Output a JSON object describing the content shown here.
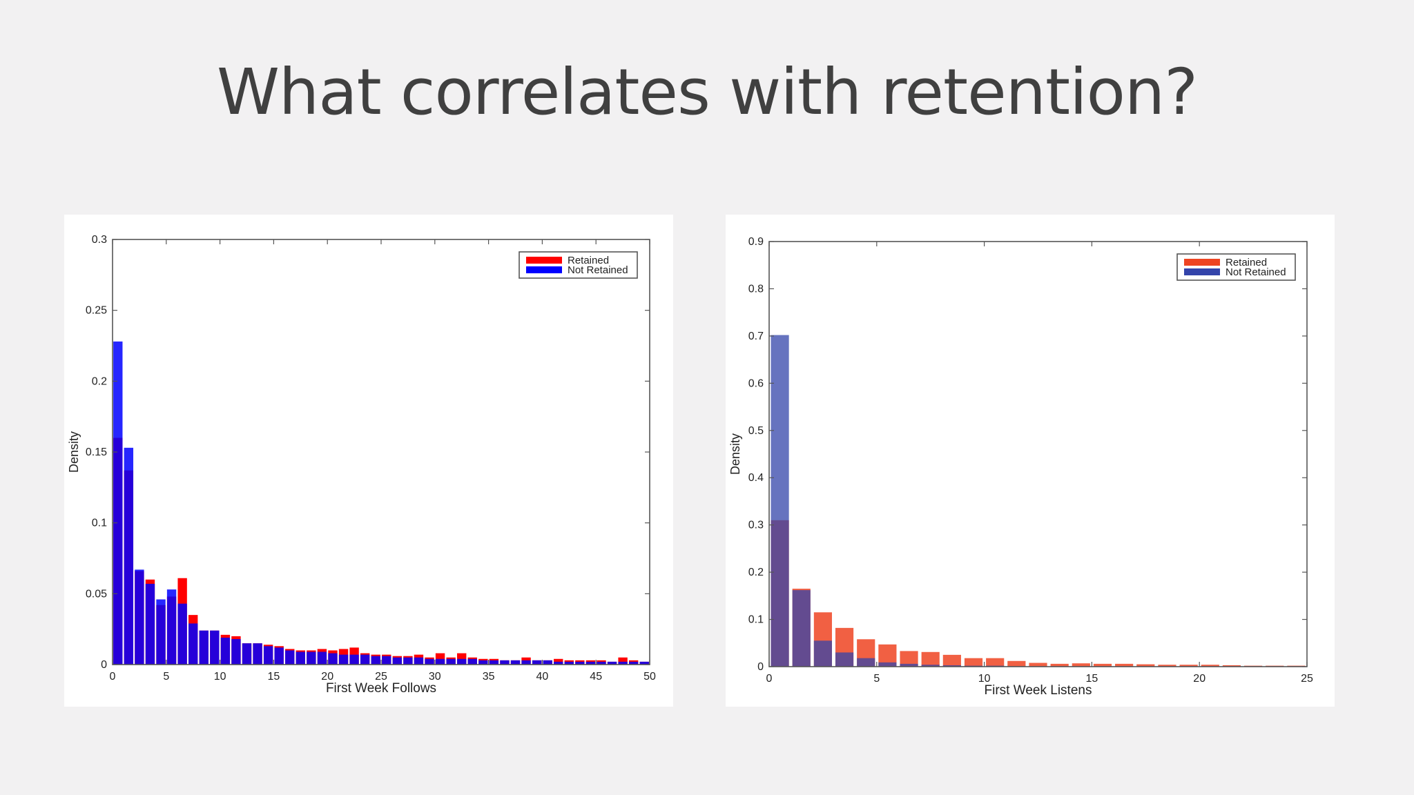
{
  "slide": {
    "title": "What correlates with retention?"
  },
  "chart_data": [
    {
      "type": "bar",
      "xlabel": "First Week Follows",
      "ylabel": "Density",
      "xlim": [
        0,
        50
      ],
      "ylim": [
        0,
        0.3
      ],
      "xticks": [
        0,
        5,
        10,
        15,
        20,
        25,
        30,
        35,
        40,
        45,
        50
      ],
      "yticks": [
        0,
        0.05,
        0.1,
        0.15,
        0.2,
        0.25,
        0.3
      ],
      "ytick_labels": [
        "0",
        "0.05",
        "0.1",
        "0.15",
        "0.2",
        "0.25",
        "0.3"
      ],
      "legend": {
        "position": "top-right"
      },
      "x": [
        0,
        1,
        2,
        3,
        4,
        5,
        6,
        7,
        8,
        9,
        10,
        11,
        12,
        13,
        14,
        15,
        16,
        17,
        18,
        19,
        20,
        21,
        22,
        23,
        24,
        25,
        26,
        27,
        28,
        29,
        30,
        31,
        32,
        33,
        34,
        35,
        36,
        37,
        38,
        39,
        40,
        41,
        42,
        43,
        44,
        45,
        46,
        47,
        48,
        49
      ],
      "series": [
        {
          "name": "Retained",
          "color": "#ff0000",
          "values": [
            0.16,
            0.137,
            0.066,
            0.06,
            0.042,
            0.048,
            0.061,
            0.035,
            0.024,
            0.024,
            0.021,
            0.02,
            0.015,
            0.015,
            0.014,
            0.013,
            0.011,
            0.01,
            0.01,
            0.011,
            0.01,
            0.011,
            0.012,
            0.008,
            0.007,
            0.007,
            0.006,
            0.006,
            0.007,
            0.005,
            0.008,
            0.005,
            0.008,
            0.005,
            0.004,
            0.004,
            0.003,
            0.003,
            0.005,
            0.003,
            0.003,
            0.004,
            0.003,
            0.003,
            0.003,
            0.003,
            0.002,
            0.005,
            0.003,
            0.002
          ]
        },
        {
          "name": "Not Retained",
          "color": "#0000ff",
          "values": [
            0.228,
            0.153,
            0.067,
            0.057,
            0.046,
            0.053,
            0.043,
            0.029,
            0.024,
            0.024,
            0.019,
            0.018,
            0.015,
            0.015,
            0.013,
            0.012,
            0.01,
            0.009,
            0.009,
            0.009,
            0.008,
            0.007,
            0.007,
            0.007,
            0.006,
            0.006,
            0.005,
            0.005,
            0.005,
            0.004,
            0.004,
            0.004,
            0.004,
            0.004,
            0.003,
            0.003,
            0.003,
            0.003,
            0.003,
            0.003,
            0.003,
            0.002,
            0.002,
            0.002,
            0.002,
            0.002,
            0.002,
            0.002,
            0.002,
            0.002
          ]
        }
      ]
    },
    {
      "type": "bar",
      "xlabel": "First Week Listens",
      "ylabel": "Density",
      "xlim": [
        0,
        25
      ],
      "ylim": [
        0,
        0.9
      ],
      "xticks": [
        0,
        5,
        10,
        15,
        20,
        25
      ],
      "yticks": [
        0,
        0.1,
        0.2,
        0.3,
        0.4,
        0.5,
        0.6,
        0.7,
        0.8,
        0.9
      ],
      "ytick_labels": [
        "0",
        "0.1",
        "0.2",
        "0.3",
        "0.4",
        "0.5",
        "0.6",
        "0.7",
        "0.8",
        "0.9"
      ],
      "legend": {
        "position": "top-right"
      },
      "x": [
        0,
        1,
        2,
        3,
        4,
        5,
        6,
        7,
        8,
        9,
        10,
        11,
        12,
        13,
        14,
        15,
        16,
        17,
        18,
        19,
        20,
        21,
        22,
        23,
        24
      ],
      "series": [
        {
          "name": "Retained",
          "color": "#ee4422",
          "values": [
            0.31,
            0.165,
            0.115,
            0.082,
            0.058,
            0.047,
            0.033,
            0.031,
            0.025,
            0.018,
            0.018,
            0.012,
            0.008,
            0.006,
            0.007,
            0.006,
            0.006,
            0.005,
            0.004,
            0.004,
            0.004,
            0.003,
            0.002,
            0.002,
            0.002
          ]
        },
        {
          "name": "Not Retained",
          "color": "#3344aa",
          "values": [
            0.702,
            0.162,
            0.055,
            0.03,
            0.018,
            0.009,
            0.006,
            0.004,
            0.003,
            0.002,
            0.002,
            0.001,
            0.001,
            0.001,
            0.001,
            0.001,
            0.001,
            0.001,
            0.001,
            0.001,
            0.001,
            0.001,
            0.001,
            0.001,
            0.001
          ]
        }
      ]
    }
  ]
}
